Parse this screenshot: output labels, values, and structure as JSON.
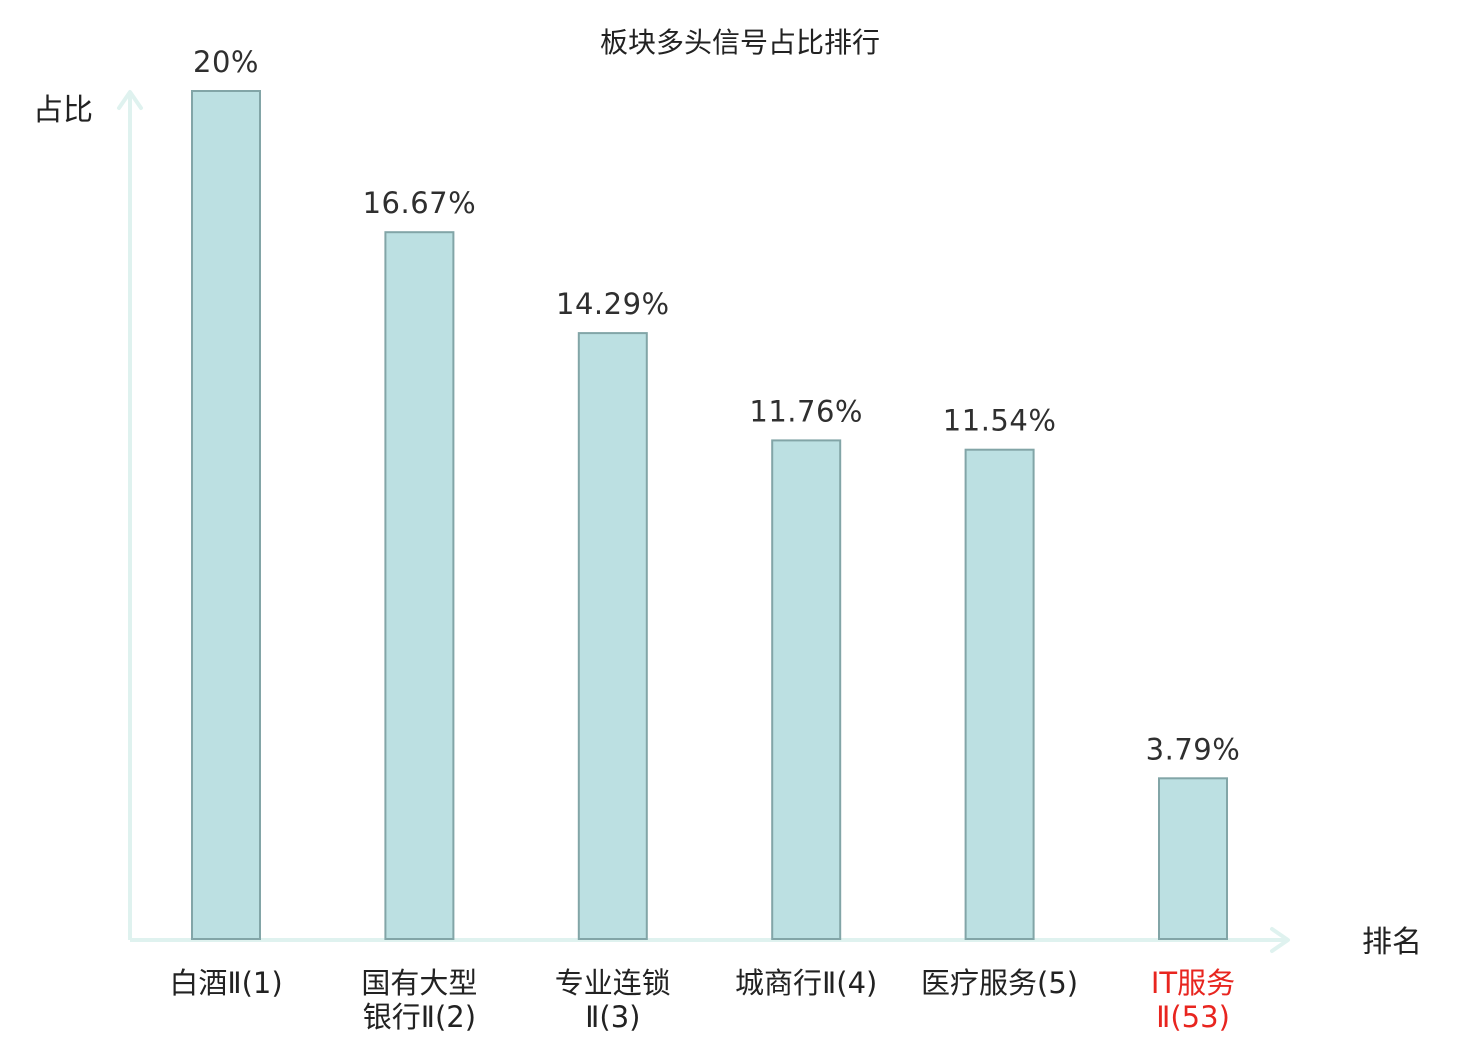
{
  "chart_data": {
    "type": "bar",
    "title": "板块多头信号占比排行",
    "ylabel": "占比",
    "xlabel": "排名",
    "ylim": [
      0,
      20
    ],
    "grid": false,
    "legend": "none",
    "categories": [
      {
        "lines": [
          "白酒Ⅱ(1)"
        ],
        "highlight": false
      },
      {
        "lines": [
          "国有大型",
          "银行Ⅱ(2)"
        ],
        "highlight": false
      },
      {
        "lines": [
          "专业连锁",
          "Ⅱ(3)"
        ],
        "highlight": false
      },
      {
        "lines": [
          "城商行Ⅱ(4)"
        ],
        "highlight": false
      },
      {
        "lines": [
          "医疗服务(5)"
        ],
        "highlight": false
      },
      {
        "lines": [
          "IT服务",
          "Ⅱ(53)"
        ],
        "highlight": true
      }
    ],
    "values": [
      20,
      16.67,
      14.29,
      11.76,
      11.54,
      3.79
    ],
    "value_labels": [
      "20%",
      "16.67%",
      "14.29%",
      "11.76%",
      "11.54%",
      "3.79%"
    ],
    "colors": {
      "bar_fill": "#bce0e2",
      "bar_stroke": "#82a5a7",
      "axis": "#dff2ef",
      "text": "#222222",
      "value_text": "#2f2f2f",
      "highlight_text": "#e8251f"
    }
  }
}
